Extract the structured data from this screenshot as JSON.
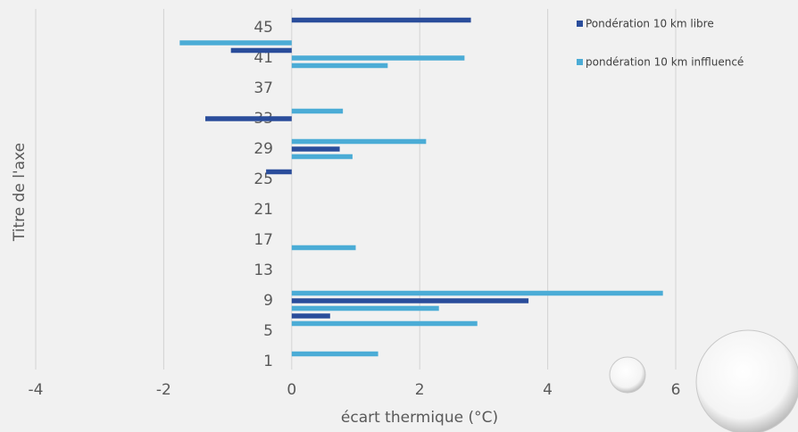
{
  "chart_data": {
    "type": "bar",
    "orientation": "horizontal",
    "x_label": "écart thermique (°C)",
    "y_label": "Titre de l'axe",
    "categories": [
      "1",
      null,
      null,
      null,
      "5",
      null,
      null,
      null,
      "9",
      null,
      null,
      null,
      "13",
      null,
      null,
      null,
      "17",
      null,
      null,
      null,
      "21",
      null,
      null,
      null,
      "25",
      null,
      null,
      null,
      "29",
      null,
      null,
      null,
      "33",
      null,
      null,
      null,
      "37",
      null,
      null,
      null,
      "41",
      null,
      null,
      null,
      "45",
      null
    ],
    "series": [
      {
        "name": "Pondération 10 km libre",
        "color": "#2a4d9b",
        "values": [
          null,
          null,
          null,
          null,
          null,
          null,
          0.6,
          null,
          3.7,
          null,
          null,
          null,
          null,
          null,
          null,
          null,
          null,
          null,
          null,
          null,
          null,
          null,
          null,
          null,
          null,
          -0.4,
          null,
          null,
          0.75,
          null,
          null,
          null,
          -1.35,
          null,
          null,
          null,
          null,
          null,
          null,
          null,
          null,
          -0.95,
          null,
          null,
          null,
          2.8
        ]
      },
      {
        "name": "pondération 10 km inffluencé",
        "color": "#4bacd6",
        "values": [
          null,
          1.35,
          null,
          null,
          null,
          2.9,
          null,
          2.3,
          null,
          5.8,
          null,
          null,
          null,
          null,
          null,
          1.0,
          null,
          null,
          null,
          null,
          null,
          null,
          null,
          null,
          null,
          null,
          null,
          0.95,
          null,
          2.1,
          null,
          null,
          null,
          0.8,
          null,
          null,
          null,
          null,
          null,
          1.5,
          2.7,
          null,
          -1.75,
          null,
          null,
          null
        ]
      }
    ],
    "xlim": [
      -4,
      6
    ],
    "xticks": [
      -4,
      -2,
      0,
      2,
      4,
      6
    ],
    "grid": true,
    "legend": "top-right"
  }
}
